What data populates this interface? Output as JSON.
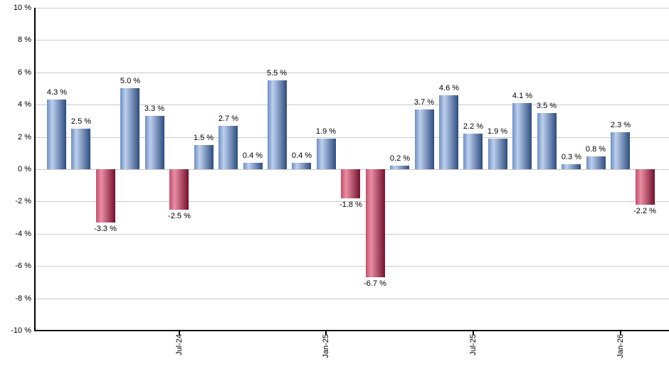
{
  "chart_data": {
    "type": "bar",
    "title": "",
    "description": "Monthly returns bar chart, blue bars positive, red bars negative",
    "unit": "%",
    "values": [
      4.3,
      2.5,
      -3.3,
      5.0,
      3.3,
      -2.5,
      1.5,
      2.7,
      0.4,
      5.5,
      0.4,
      1.9,
      -1.8,
      -6.7,
      0.2,
      3.7,
      4.6,
      2.2,
      1.9,
      4.1,
      3.5,
      0.3,
      0.8,
      2.3,
      -2.2
    ],
    "bar_labels": [
      "4.3 %",
      "2.5 %",
      "-3.3 %",
      "5.0 %",
      "3.3 %",
      "-2.5 %",
      "1.5 %",
      "2.7 %",
      "0.4 %",
      "5.5 %",
      "0.4 %",
      "1.9 %",
      "-1.8 %",
      "-6.7 %",
      "0.2 %",
      "3.7 %",
      "4.6 %",
      "2.2 %",
      "1.9 %",
      "4.1 %",
      "3.5 %",
      "0.3 %",
      "0.8 %",
      "2.3 %",
      "-2.2 %"
    ],
    "x_ticks": [
      {
        "index": 5,
        "label": "Jul-24"
      },
      {
        "index": 11,
        "label": "Jan-25"
      },
      {
        "index": 17,
        "label": "Jul-25"
      },
      {
        "index": 23,
        "label": "Jan-26"
      }
    ],
    "y_ticks": [
      10,
      8,
      6,
      4,
      2,
      0,
      -2,
      -4,
      -6,
      -8,
      -10
    ],
    "y_tick_suffix": " %",
    "ylim": [
      -10,
      10
    ],
    "grid": true,
    "legend": null,
    "colors": {
      "positive_gradient": [
        "#6e8ec3",
        "#bdd0ee",
        "#2d4c7f"
      ],
      "negative_gradient": [
        "#c24f6c",
        "#e98ea4",
        "#75102e"
      ],
      "gridline": "#c9c9c9",
      "axis": "#000000",
      "label_text": "#000000",
      "background": "#ffffff"
    }
  }
}
